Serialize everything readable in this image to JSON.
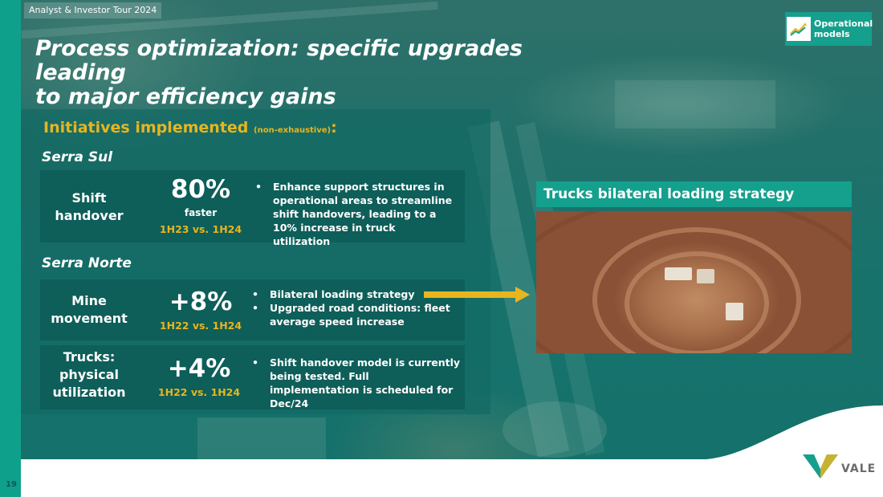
{
  "header": {
    "tour_label": "Analyst & Investor Tour 2024",
    "title_line1": "Process optimization: specific upgrades leading",
    "title_line2": "to major efficiency gains",
    "badge_label_line1": "Operational",
    "badge_label_line2": "models",
    "badge_icon": "trend-chart-icon"
  },
  "initiatives": {
    "heading": "Initiatives implemented ",
    "qualifier": "(non-exhaustive)",
    "colon": ":"
  },
  "regions": [
    {
      "name": "Serra Sul",
      "rows": [
        {
          "label_line1": "Shift",
          "label_line2": "handover",
          "metric": "80%",
          "metric_sub": "faster",
          "period": "1H23 vs. 1H24",
          "bullets": [
            "Enhance support structures in operational areas to streamline shift handovers, leading to a 10% increase in truck utilization"
          ]
        }
      ]
    },
    {
      "name": "Serra Norte",
      "rows": [
        {
          "label_line1": "Mine",
          "label_line2": "movement",
          "metric": "+8%",
          "period": "1H22 vs. 1H24",
          "bullets": [
            "Bilateral loading strategy",
            "Upgraded road conditions: fleet average speed increase"
          ]
        },
        {
          "label_line1": "Trucks:",
          "label_line2": "physical",
          "label_line3": "utilization",
          "metric": "+4%",
          "period": "1H22 vs. 1H24",
          "bullets": [
            "Shift handover model is currently being tested. Full implementation is scheduled for Dec/24"
          ]
        }
      ]
    }
  ],
  "photo_panel": {
    "title": "Trucks bilateral loading strategy"
  },
  "footer": {
    "page_number": "19",
    "logo_text": "VALE"
  },
  "colors": {
    "accent_teal": "#14a08c",
    "accent_gold": "#e8b51f",
    "dark_teal": "#0c5a52"
  }
}
